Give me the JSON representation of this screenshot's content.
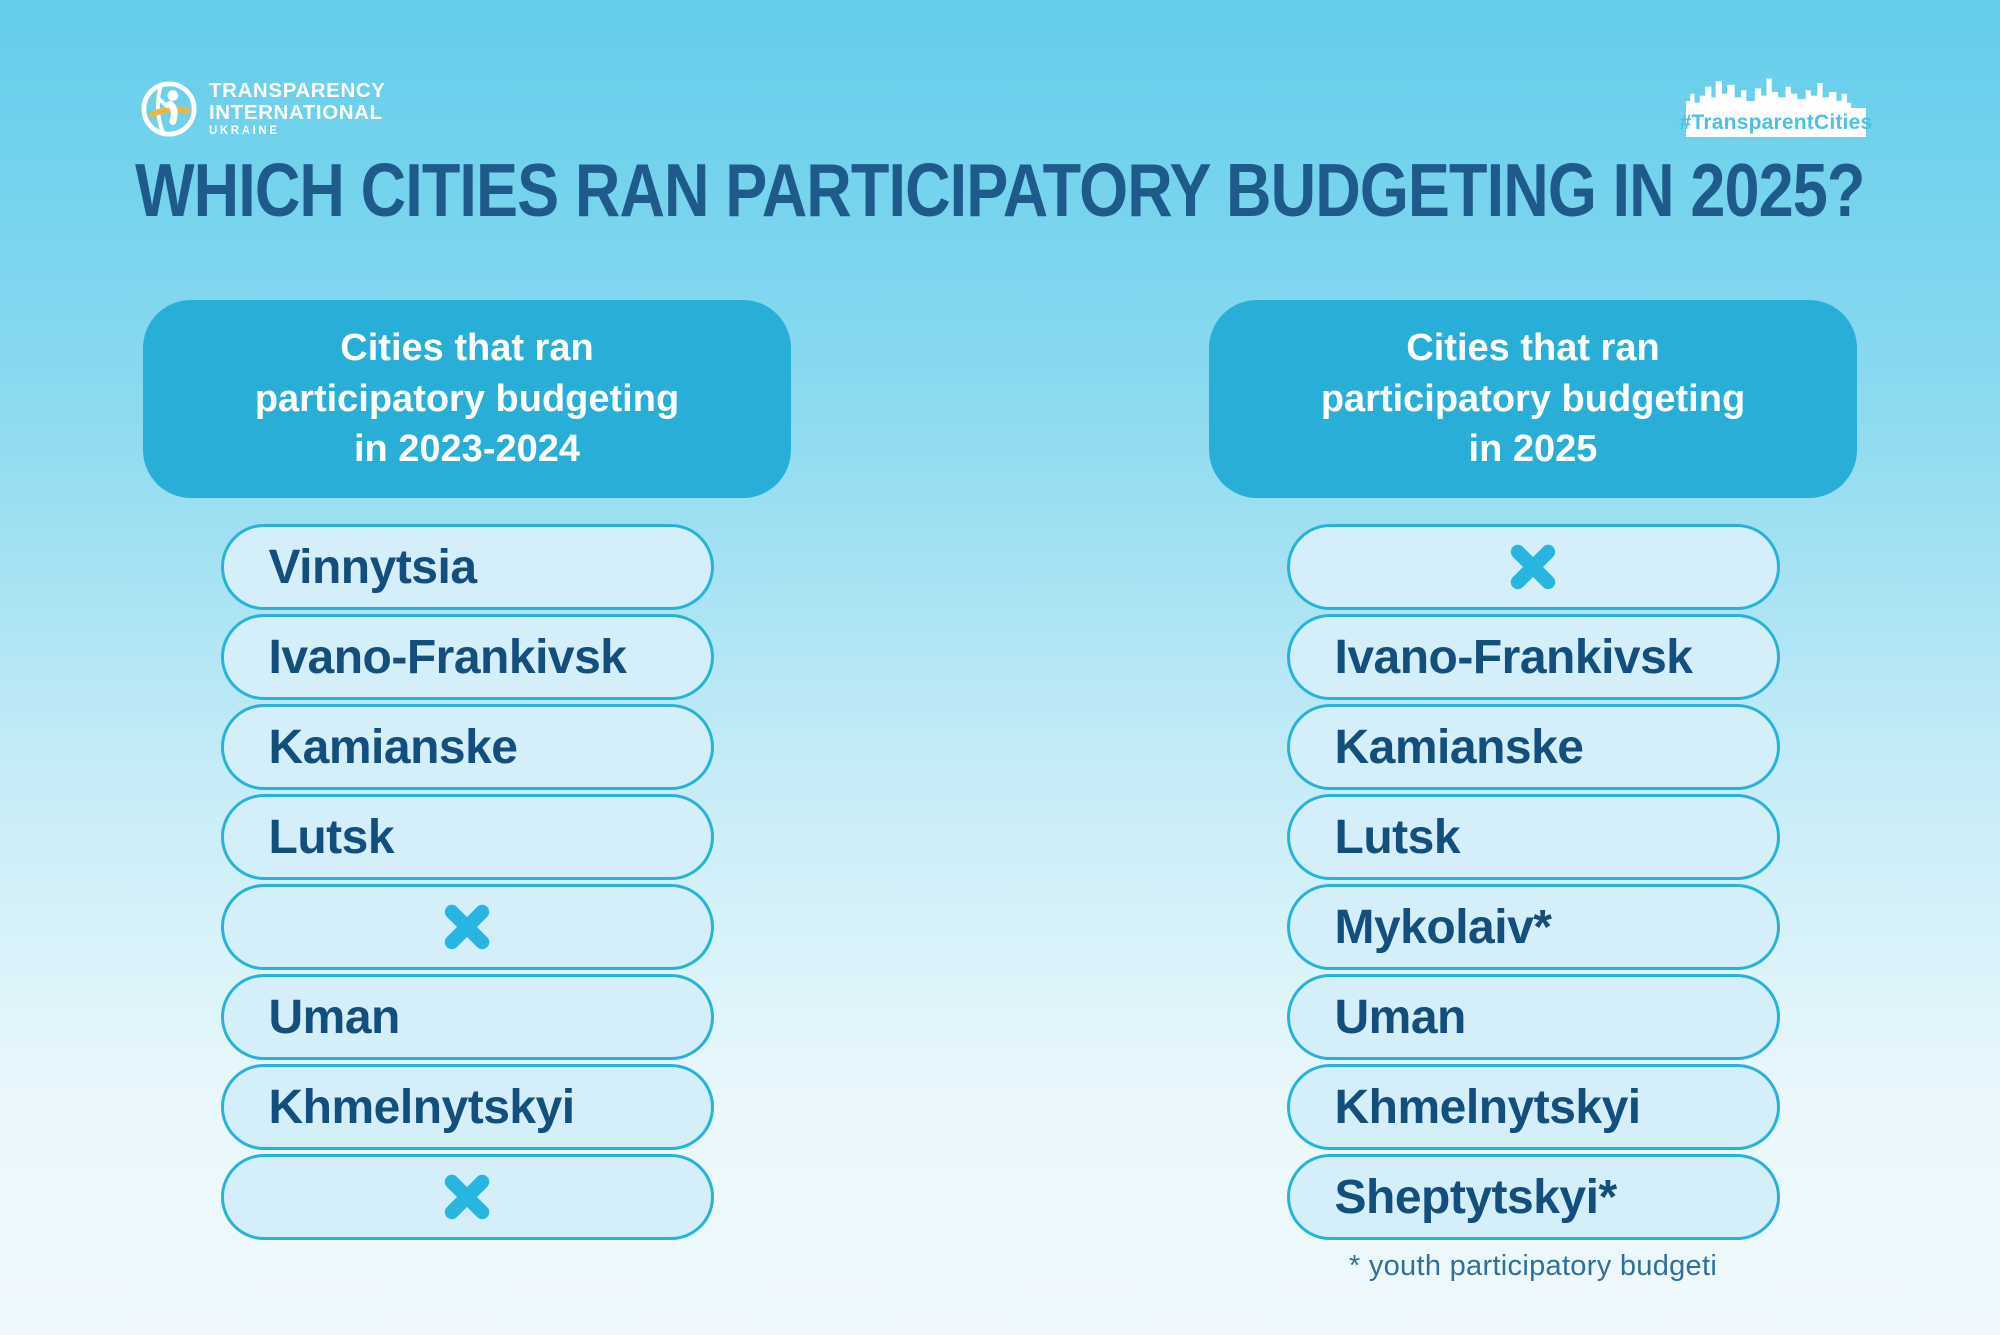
{
  "page": {
    "title": "WHICH CITIES RAN PARTICIPATORY BUDGETING IN 2025?"
  },
  "branding": {
    "logo_line1": "TRANSPARENCY",
    "logo_line2": "INTERNATIONAL",
    "logo_line3": "UKRAINE",
    "hashtag": "#TransparentCities"
  },
  "columns": [
    {
      "header": "Cities that ran\nparticipatory budgeting\nin 2023-2024",
      "items": [
        {
          "label": "Vinnytsia"
        },
        {
          "label": "Ivano-Frankivsk"
        },
        {
          "label": "Kamianske"
        },
        {
          "label": "Lutsk"
        },
        {
          "x": true
        },
        {
          "label": "Uman"
        },
        {
          "label": "Khmelnytskyi"
        },
        {
          "x": true
        }
      ]
    },
    {
      "header": "Cities that ran\nparticipatory budgeting\nin 2025",
      "items": [
        {
          "x": true
        },
        {
          "label": "Ivano-Frankivsk"
        },
        {
          "label": "Kamianske"
        },
        {
          "label": "Lutsk"
        },
        {
          "label": "Mykolaiv*"
        },
        {
          "label": "Uman"
        },
        {
          "label": "Khmelnytskyi"
        },
        {
          "label": "Sheptytskyi*"
        }
      ],
      "footnote": "* youth participatory budgeti"
    }
  ],
  "colors": {
    "background_top": "#63cdea",
    "background_bottom": "#eff9fd",
    "header_fill": "#29afd7",
    "header_text": "#ffffff",
    "pill_fill": "#d4effa",
    "pill_border": "#27b2da",
    "pill_text": "#134e7c",
    "title_text": "#1e5b8a",
    "x_mark": "#29b5e2",
    "logo_swoosh_orange": "#eeb53f",
    "footnote_text": "#2f6fa0",
    "hashtag_text": "#4cc1e5"
  }
}
